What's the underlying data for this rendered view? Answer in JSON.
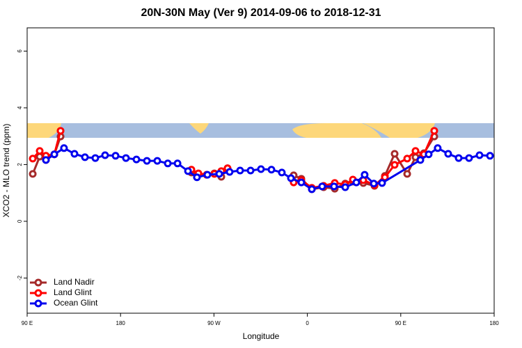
{
  "chart_data": {
    "type": "line",
    "title": "20N-30N May (Ver 9)   2014-09-06 to 2018-12-31",
    "x_label": "Longitude",
    "y_label": "XCO2 - MLO trend (ppm)",
    "xlim": [
      90,
      540
    ],
    "xticks": [
      {
        "value": 90,
        "label": "90 E"
      },
      {
        "value": 180,
        "label": "180"
      },
      {
        "value": 270,
        "label": "90 W"
      },
      {
        "value": 360,
        "label": "0"
      },
      {
        "value": 450,
        "label": "90 E"
      },
      {
        "value": 540,
        "label": "180"
      }
    ],
    "ylim": [
      -3.24,
      6.82
    ],
    "yticks": [
      -2,
      0,
      2,
      4,
      6
    ],
    "legend": "bottomleft",
    "series": [
      {
        "name": "Land Nadir",
        "color": "#a52a2a",
        "x": [
          95.4,
          102.1,
          108.1,
          116.2,
          122.2,
          null,
          248.3,
          255.0,
          263.0,
          270.4,
          277.1,
          283.1,
          null,
          346.8,
          354.2,
          364.3,
          375.7,
          386.4,
          396.5,
          403.9,
          413.9,
          424.7,
          434.7,
          444.1,
          456.2,
          464.2,
          472.3,
          482.3
        ],
        "values": [
          1.67,
          2.28,
          2.16,
          2.36,
          2.99,
          null,
          1.72,
          1.67,
          1.64,
          1.69,
          1.57,
          1.87,
          null,
          1.62,
          1.5,
          1.13,
          1.2,
          1.15,
          1.33,
          1.4,
          1.35,
          1.25,
          1.6,
          2.38,
          1.67,
          2.26,
          2.4,
          2.99
        ]
      },
      {
        "name": "Land Glint",
        "color": "#ff0000",
        "x": [
          95.4,
          102.1,
          108.1,
          116.2,
          122.2,
          null,
          248.3,
          255.0,
          263.0,
          270.4,
          277.1,
          283.1,
          null,
          346.8,
          354.2,
          364.3,
          375.7,
          386.4,
          396.5,
          403.9,
          413.9,
          424.7,
          434.7,
          444.1,
          456.2,
          464.2,
          472.3,
          482.3
        ],
        "values": [
          2.21,
          2.48,
          2.31,
          2.36,
          3.19,
          null,
          1.82,
          1.69,
          1.64,
          1.67,
          1.77,
          1.87,
          null,
          1.37,
          1.45,
          1.18,
          1.25,
          1.35,
          1.3,
          1.47,
          1.45,
          1.28,
          1.55,
          1.99,
          2.21,
          2.48,
          2.36,
          3.19
        ]
      },
      {
        "name": "Ocean Glint",
        "color": "#0000ee",
        "x": [
          108.1,
          116.2,
          125.5,
          135.6,
          145.7,
          155.7,
          165.1,
          175.2,
          185.2,
          195.3,
          205.4,
          215.4,
          225.5,
          234.9,
          245.0,
          253.6,
          263.7,
          275.1,
          285.1,
          295.2,
          305.3,
          315.3,
          325.4,
          335.4,
          344.2,
          354.2,
          364.3,
          374.3,
          385.7,
          396.5,
          407.2,
          415.2,
          424.0,
          432.0,
          468.9,
          476.9,
          485.6,
          495.7,
          505.8,
          515.8,
          525.9,
          536.0
        ],
        "values": [
          2.16,
          2.36,
          2.58,
          2.38,
          2.26,
          2.23,
          2.33,
          2.31,
          2.23,
          2.18,
          2.13,
          2.13,
          2.04,
          2.04,
          1.77,
          1.55,
          1.64,
          1.67,
          1.74,
          1.79,
          1.79,
          1.84,
          1.82,
          1.72,
          1.52,
          1.37,
          1.13,
          1.23,
          1.23,
          1.2,
          1.37,
          1.64,
          1.33,
          1.35,
          2.16,
          2.36,
          2.58,
          2.38,
          2.23,
          2.23,
          2.33,
          2.31
        ]
      }
    ]
  }
}
